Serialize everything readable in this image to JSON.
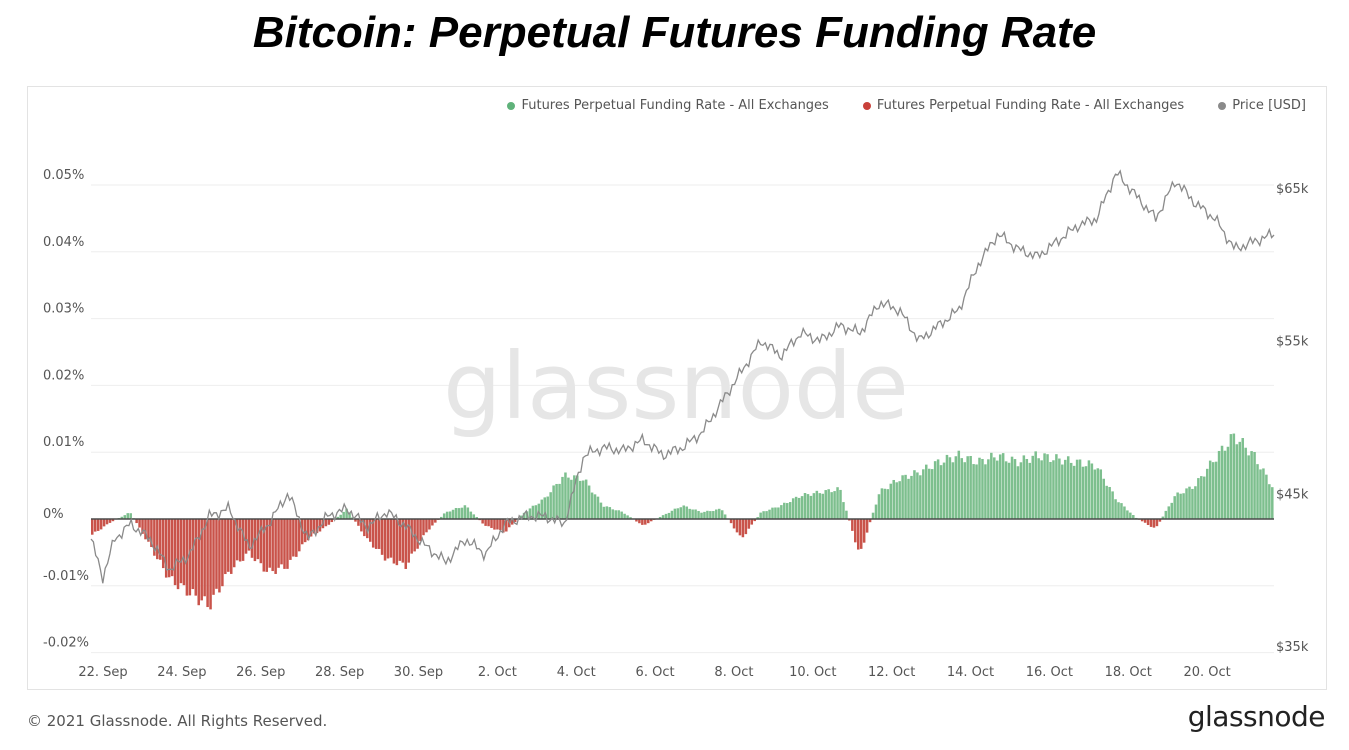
{
  "title": "Bitcoin: Perpetual Futures Funding Rate",
  "footer": {
    "copyright": "© 2021 Glassnode. All Rights Reserved.",
    "logo": "glassnode"
  },
  "watermark": "glassnode",
  "colors": {
    "positive": "#7dbf8e",
    "negative": "#c9534a",
    "price": "#8a8a8a",
    "zero_line": "#4a4a4a",
    "grid": "#eeeeee"
  },
  "chart_data": {
    "type": "bar",
    "title": "Bitcoin: Perpetual Futures Funding Rate",
    "legend_position": "top-right",
    "legend": [
      {
        "label": "Futures Perpetual Funding Rate - All Exchanges",
        "color": "#5fb27a"
      },
      {
        "label": "Futures Perpetual Funding Rate - All Exchanges",
        "color": "#c9403a"
      },
      {
        "label": "Price [USD]",
        "color": "#8a8a8a"
      }
    ],
    "grid": true,
    "x_ticks": [
      "22. Sep",
      "24. Sep",
      "26. Sep",
      "28. Sep",
      "30. Sep",
      "2. Oct",
      "4. Oct",
      "6. Oct",
      "8. Oct",
      "10. Oct",
      "12. Oct",
      "14. Oct",
      "16. Oct",
      "18. Oct",
      "20. Oct"
    ],
    "y_left": {
      "ticks": [
        "-0.02%",
        "-0.01%",
        "0%",
        "0.01%",
        "0.02%",
        "0.03%",
        "0.04%",
        "0.05%"
      ],
      "range": [
        -0.02,
        0.05
      ],
      "unit": "%"
    },
    "y_right": {
      "ticks": [
        "$35k",
        "$45k",
        "$55k",
        "$65k"
      ],
      "range": [
        35000,
        65000
      ]
    },
    "x_range": [
      0,
      30
    ],
    "funding_rate_series": [
      [
        0,
        -0.0025
      ],
      [
        0.5,
        -0.0005
      ],
      [
        1,
        0.001
      ],
      [
        1.5,
        -0.004
      ],
      [
        2,
        -0.009
      ],
      [
        2.5,
        -0.011
      ],
      [
        3,
        -0.013
      ],
      [
        3.5,
        -0.008
      ],
      [
        4,
        -0.005
      ],
      [
        4.5,
        -0.008
      ],
      [
        5,
        -0.007
      ],
      [
        5.5,
        -0.003
      ],
      [
        6,
        -0.001
      ],
      [
        6.5,
        0.0015
      ],
      [
        7,
        -0.003
      ],
      [
        7.5,
        -0.006
      ],
      [
        8,
        -0.007
      ],
      [
        8.5,
        -0.002
      ],
      [
        9,
        0.001
      ],
      [
        9.5,
        0.002
      ],
      [
        10,
        -0.001
      ],
      [
        10.5,
        -0.002
      ],
      [
        11,
        0.001
      ],
      [
        11.5,
        0.003
      ],
      [
        12,
        0.0065
      ],
      [
        12.5,
        0.006
      ],
      [
        13,
        0.002
      ],
      [
        13.5,
        0.001
      ],
      [
        14,
        -0.001
      ],
      [
        14.5,
        0.0005
      ],
      [
        15,
        0.002
      ],
      [
        15.5,
        0.001
      ],
      [
        16,
        0.0015
      ],
      [
        16.5,
        -0.003
      ],
      [
        17,
        0.001
      ],
      [
        17.5,
        0.002
      ],
      [
        18,
        0.0035
      ],
      [
        18.5,
        0.004
      ],
      [
        19,
        0.0045
      ],
      [
        19.5,
        -0.0055
      ],
      [
        20,
        0.004
      ],
      [
        20.5,
        0.006
      ],
      [
        21,
        0.007
      ],
      [
        21.5,
        0.0085
      ],
      [
        22,
        0.0095
      ],
      [
        22.5,
        0.0085
      ],
      [
        23,
        0.0095
      ],
      [
        23.5,
        0.0085
      ],
      [
        24,
        0.0095
      ],
      [
        24.5,
        0.009
      ],
      [
        25,
        0.0085
      ],
      [
        25.5,
        0.008
      ],
      [
        26,
        0.003
      ],
      [
        26.5,
        0.0002
      ],
      [
        27,
        -0.0015
      ],
      [
        27.5,
        0.0035
      ],
      [
        28,
        0.005
      ],
      [
        28.5,
        0.009
      ],
      [
        29,
        0.0125
      ],
      [
        29.5,
        0.0095
      ],
      [
        30,
        0.0045
      ]
    ],
    "price_series": [
      [
        0,
        42000
      ],
      [
        0.3,
        39500
      ],
      [
        0.6,
        42000
      ],
      [
        1,
        43000
      ],
      [
        1.5,
        42000
      ],
      [
        2,
        40000
      ],
      [
        2.5,
        41000
      ],
      [
        3,
        43500
      ],
      [
        3.5,
        44000
      ],
      [
        4,
        41500
      ],
      [
        4.5,
        43000
      ],
      [
        5,
        45000
      ],
      [
        5.5,
        42000
      ],
      [
        6,
        43500
      ],
      [
        6.5,
        44000
      ],
      [
        7,
        42800
      ],
      [
        7.5,
        43800
      ],
      [
        8,
        42800
      ],
      [
        8.5,
        41500
      ],
      [
        9,
        40500
      ],
      [
        9.5,
        42000
      ],
      [
        10,
        41000
      ],
      [
        10.5,
        43000
      ],
      [
        11,
        43500
      ],
      [
        11.5,
        43500
      ],
      [
        12,
        43000
      ],
      [
        12.5,
        47500
      ],
      [
        13,
        48000
      ],
      [
        13.5,
        47800
      ],
      [
        14,
        48500
      ],
      [
        14.5,
        47500
      ],
      [
        15,
        48000
      ],
      [
        15.5,
        49000
      ],
      [
        16,
        51000
      ],
      [
        16.5,
        53000
      ],
      [
        17,
        55000
      ],
      [
        17.5,
        54000
      ],
      [
        18,
        55500
      ],
      [
        18.5,
        55000
      ],
      [
        19,
        56000
      ],
      [
        19.5,
        55500
      ],
      [
        20,
        57500
      ],
      [
        20.5,
        57000
      ],
      [
        21,
        55000
      ],
      [
        21.5,
        56000
      ],
      [
        22,
        57000
      ],
      [
        22.5,
        60000
      ],
      [
        23,
        62000
      ],
      [
        23.5,
        61000
      ],
      [
        24,
        60500
      ],
      [
        24.5,
        61500
      ],
      [
        25,
        62500
      ],
      [
        25.5,
        63000
      ],
      [
        26,
        66000
      ],
      [
        26.5,
        64500
      ],
      [
        27,
        63000
      ],
      [
        27.5,
        65500
      ],
      [
        28,
        64000
      ],
      [
        28.5,
        63000
      ],
      [
        29,
        61000
      ],
      [
        29.5,
        61500
      ],
      [
        30,
        62000
      ]
    ]
  }
}
